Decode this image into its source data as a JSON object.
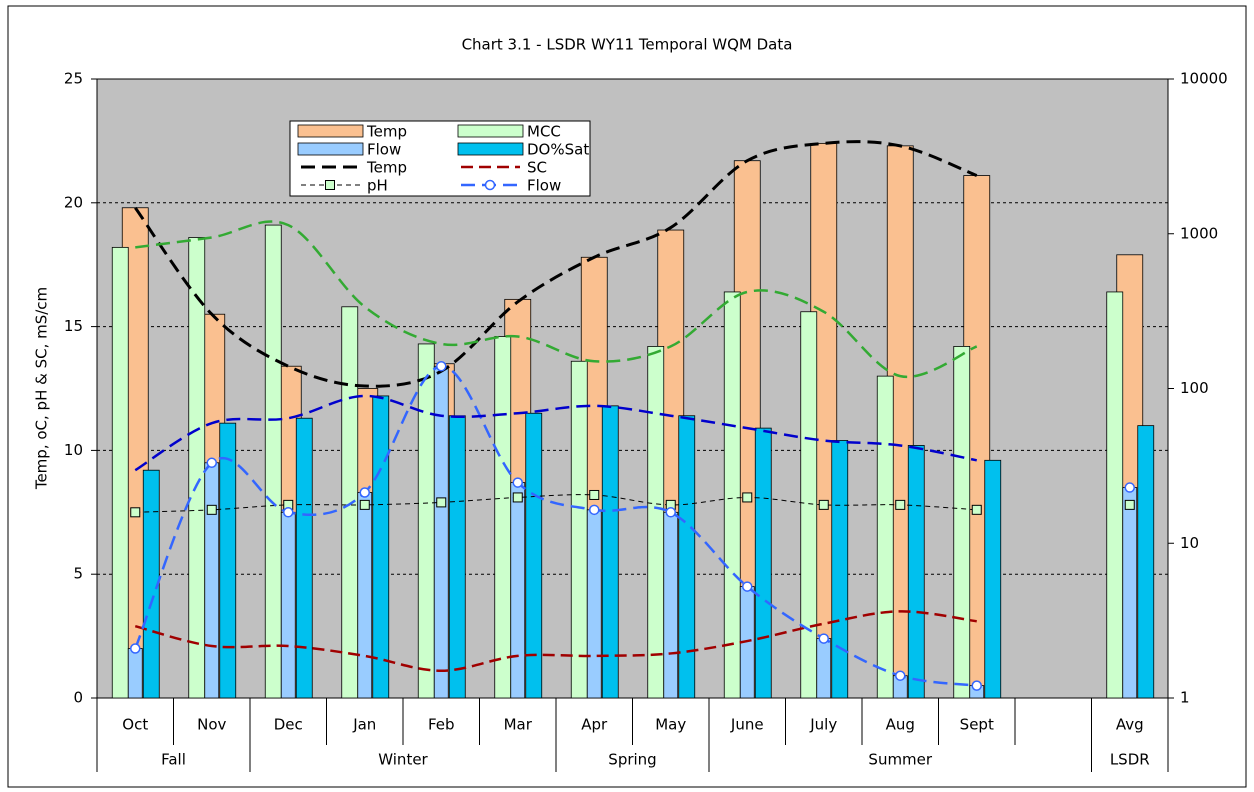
{
  "chart_data": {
    "type": "combo",
    "title": "Chart 3.1 - LSDR WY11 Temporal WQM Data",
    "y_label": "Temp, oC, pH & SC, mS/cm",
    "categories": [
      "Oct",
      "Nov",
      "Dec",
      "Jan",
      "Feb",
      "Mar",
      "Apr",
      "May",
      "June",
      "July",
      "Aug",
      "Sept",
      null,
      "Avg"
    ],
    "groups": [
      {
        "label": "Fall",
        "span": 2
      },
      {
        "label": "Winter",
        "span": 4
      },
      {
        "label": "Spring",
        "span": 2
      },
      {
        "label": "Summer",
        "span": 5
      },
      {
        "label": "LSDR",
        "span": 1
      }
    ],
    "ylim": [
      0,
      25
    ],
    "yticks": [
      0,
      5,
      10,
      15,
      20,
      25
    ],
    "y2lim": [
      1,
      10000
    ],
    "y2ticks": [
      1,
      10,
      100,
      1000,
      10000
    ],
    "y2scale": "log",
    "grid": true,
    "series": [
      {
        "name": "Temp",
        "type": "bar",
        "color": "#fac090",
        "values": [
          19.8,
          15.5,
          13.4,
          12.5,
          13.5,
          16.1,
          17.8,
          18.9,
          21.7,
          22.4,
          22.3,
          21.1,
          null,
          17.9
        ]
      },
      {
        "name": "MCC",
        "type": "bar",
        "color": "#ccffcc",
        "values": [
          18.2,
          18.6,
          19.1,
          15.8,
          14.3,
          14.6,
          13.6,
          14.2,
          16.4,
          15.6,
          13.0,
          14.2,
          null,
          16.4
        ]
      },
      {
        "name": "Flow",
        "type": "bar",
        "color": "#99ccff",
        "values": [
          2.0,
          9.5,
          7.5,
          8.3,
          13.4,
          8.7,
          7.6,
          7.5,
          4.5,
          2.4,
          0.9,
          0.5,
          null,
          8.5
        ]
      },
      {
        "name": "DO%Sat",
        "type": "bar",
        "color": "#00c0ee",
        "values": [
          9.2,
          11.1,
          11.3,
          12.2,
          11.4,
          11.5,
          11.8,
          11.4,
          10.9,
          10.4,
          10.2,
          9.6,
          null,
          11.0
        ]
      },
      {
        "name": "Temp",
        "type": "line",
        "color": "#000000",
        "width": 3,
        "dash": "14 7",
        "values": [
          19.8,
          15.5,
          13.4,
          12.6,
          13.2,
          16.0,
          17.8,
          19.0,
          21.7,
          22.4,
          22.3,
          21.1,
          null,
          null
        ]
      },
      {
        "name": "SC",
        "type": "line",
        "color": "#a00000",
        "width": 2.5,
        "dash": "12 6",
        "values": [
          2.9,
          2.1,
          2.1,
          1.7,
          1.1,
          1.7,
          1.7,
          1.8,
          2.3,
          3.0,
          3.5,
          3.1,
          null,
          null
        ]
      },
      {
        "name": "pH",
        "type": "line",
        "color": "#000000",
        "width": 1,
        "dash": "5 4",
        "marker": "square",
        "marker_fill": "#ccffcc",
        "values": [
          7.5,
          7.6,
          7.8,
          7.8,
          7.9,
          8.1,
          8.2,
          7.8,
          8.1,
          7.8,
          7.8,
          7.6,
          null,
          7.8
        ]
      },
      {
        "name": "Flow",
        "type": "line",
        "color": "#3366ff",
        "width": 2.5,
        "dash": "14 7",
        "marker": "circle",
        "marker_fill": "#ffffff",
        "values": [
          2.0,
          9.5,
          7.5,
          8.3,
          13.4,
          8.7,
          7.6,
          7.5,
          4.5,
          2.4,
          0.9,
          0.5,
          null,
          8.5
        ]
      },
      {
        "type": "line",
        "color": "#33aa33",
        "width": 2.5,
        "dash": "14 7",
        "values": [
          18.2,
          18.6,
          19.1,
          15.8,
          14.3,
          14.6,
          13.6,
          14.2,
          16.4,
          15.6,
          13.0,
          14.2,
          null,
          null
        ]
      },
      {
        "type": "line",
        "color": "#0000cc",
        "width": 2.5,
        "dash": "14 7",
        "values": [
          9.2,
          11.1,
          11.3,
          12.2,
          11.4,
          11.5,
          11.8,
          11.4,
          10.9,
          10.4,
          10.2,
          9.6,
          null,
          null
        ]
      }
    ]
  }
}
